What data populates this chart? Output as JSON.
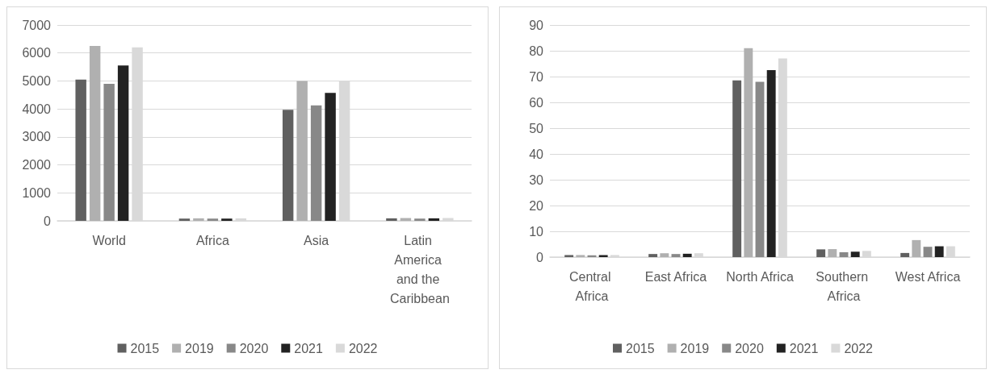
{
  "chart_data": [
    {
      "type": "bar",
      "categories": [
        "World",
        "Africa",
        "Asia",
        "Latin America and the Caribbean"
      ],
      "series": [
        {
          "name": "2015",
          "color": "#606060",
          "values": [
            5050,
            80,
            3970,
            90
          ]
        },
        {
          "name": "2019",
          "color": "#b0b0b0",
          "values": [
            6250,
            90,
            5000,
            100
          ]
        },
        {
          "name": "2020",
          "color": "#888888",
          "values": [
            4900,
            80,
            4130,
            80
          ]
        },
        {
          "name": "2021",
          "color": "#222222",
          "values": [
            5550,
            80,
            4570,
            90
          ]
        },
        {
          "name": "2022",
          "color": "#d9d9d9",
          "values": [
            6200,
            90,
            5000,
            100
          ]
        }
      ],
      "ylim": [
        0,
        7000
      ],
      "yticks": [
        0,
        1000,
        2000,
        3000,
        4000,
        5000,
        6000,
        7000
      ],
      "grid": "y",
      "legend": "bottom"
    },
    {
      "type": "bar",
      "categories": [
        "Central Africa",
        "East Africa",
        "North Africa",
        "Southern Africa",
        "West Africa"
      ],
      "series": [
        {
          "name": "2015",
          "color": "#606060",
          "values": [
            0.8,
            1.2,
            68.5,
            3,
            1.6
          ]
        },
        {
          "name": "2019",
          "color": "#b0b0b0",
          "values": [
            0.8,
            1.5,
            81,
            3.1,
            6.6
          ]
        },
        {
          "name": "2020",
          "color": "#888888",
          "values": [
            0.7,
            1.2,
            68,
            1.9,
            4
          ]
        },
        {
          "name": "2021",
          "color": "#222222",
          "values": [
            0.8,
            1.3,
            72.5,
            2.1,
            4.2
          ]
        },
        {
          "name": "2022",
          "color": "#d9d9d9",
          "values": [
            0.8,
            1.5,
            77,
            2.4,
            4.2
          ]
        }
      ],
      "ylim": [
        0,
        90
      ],
      "yticks": [
        0,
        10,
        20,
        30,
        40,
        50,
        60,
        70,
        80,
        90
      ],
      "grid": "y",
      "legend": "bottom"
    }
  ]
}
